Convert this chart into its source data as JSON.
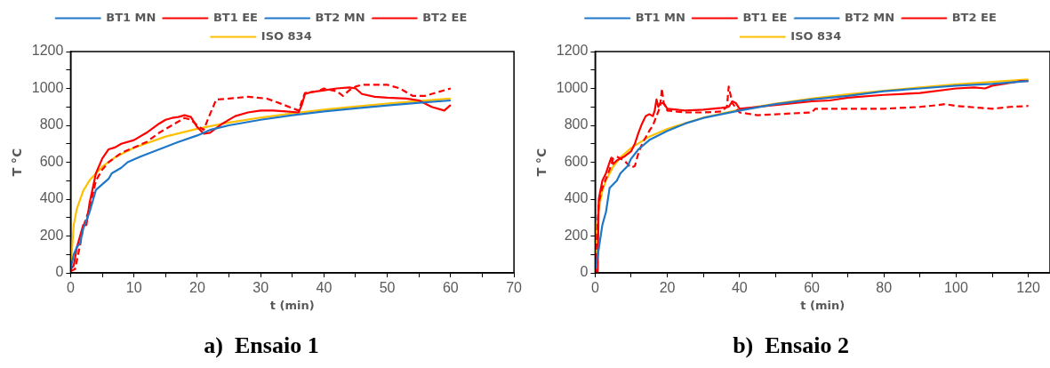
{
  "chart_data": [
    {
      "type": "line",
      "title": "a)  Ensaio 1",
      "xlabel": "t (min)",
      "ylabel": "T °C",
      "xlim": [
        0,
        70
      ],
      "ylim": [
        0,
        1200
      ],
      "xticks": [
        0,
        {
          "value": 5,
          "label": null
        },
        10,
        {
          "value": 15,
          "label": null
        },
        20,
        {
          "value": 25,
          "label": null
        },
        30,
        {
          "value": 35,
          "label": null
        },
        40,
        {
          "value": 45,
          "label": null
        },
        50,
        {
          "value": 55,
          "label": null
        },
        60,
        {
          "value": 65,
          "label": null
        },
        70
      ],
      "yticks": [
        0,
        {
          "value": 100,
          "label": null
        },
        200,
        {
          "value": 300,
          "label": null
        },
        400,
        {
          "value": 500,
          "label": null
        },
        600,
        {
          "value": 700,
          "label": null
        },
        800,
        {
          "value": 900,
          "label": null
        },
        1000,
        {
          "value": 1100,
          "label": null
        },
        1200
      ],
      "grid": false,
      "legend": "top",
      "marker": "none",
      "series": [
        {
          "name": "BT1 MN",
          "color": "#1f77c8",
          "line_style": "solid",
          "x": [
            0,
            0.5,
            1,
            1.5,
            2,
            3,
            4,
            5,
            6,
            6.5,
            8,
            9,
            11,
            14,
            17,
            20,
            22,
            25,
            30,
            35,
            40,
            45,
            50,
            55,
            60
          ],
          "values": [
            20,
            100,
            140,
            160,
            240,
            330,
            450,
            480,
            510,
            540,
            570,
            600,
            630,
            670,
            710,
            745,
            775,
            800,
            830,
            855,
            875,
            892,
            908,
            922,
            935
          ]
        },
        {
          "name": "BT1 EE",
          "color": "#ff0000",
          "line_style": "solid",
          "x": [
            0,
            0.5,
            1,
            1.5,
            2,
            2.5,
            3,
            4,
            5,
            6,
            7,
            8,
            10,
            12,
            14,
            15,
            16,
            17,
            18,
            19,
            20,
            21,
            22,
            24,
            26,
            28,
            30,
            32,
            34,
            36,
            36.5,
            37,
            38,
            40,
            42,
            44,
            45,
            46,
            48,
            50,
            53,
            55,
            57,
            59,
            60
          ],
          "values": [
            20,
            40,
            140,
            200,
            260,
            260,
            380,
            540,
            620,
            670,
            680,
            700,
            720,
            760,
            810,
            830,
            840,
            845,
            855,
            845,
            790,
            755,
            760,
            810,
            850,
            870,
            880,
            880,
            875,
            870,
            910,
            970,
            980,
            990,
            1000,
            1005,
            1000,
            970,
            955,
            950,
            945,
            935,
            900,
            880,
            910
          ]
        },
        {
          "name": "BT2 MN",
          "color": "#1f77c8",
          "line_style": "dashed"
        },
        {
          "name": "BT2 EE",
          "color": "#ff0000",
          "line_style": "dashed",
          "x": [
            0,
            0.7,
            1.5,
            2,
            3,
            4,
            5,
            6,
            8,
            10,
            12,
            14,
            16,
            18,
            19,
            20,
            21,
            22,
            23,
            25,
            28,
            31,
            33,
            36,
            36.5,
            37,
            39,
            40,
            42,
            43,
            44,
            45,
            46,
            48,
            50,
            52,
            54,
            56,
            58,
            60
          ],
          "values": [
            10,
            20,
            150,
            250,
            350,
            500,
            560,
            600,
            650,
            680,
            710,
            760,
            800,
            840,
            830,
            800,
            775,
            860,
            940,
            945,
            955,
            945,
            920,
            880,
            930,
            975,
            985,
            1000,
            985,
            960,
            990,
            1010,
            1020,
            1020,
            1020,
            1000,
            960,
            960,
            980,
            1000
          ]
        },
        {
          "name": "ISO 834",
          "color": "#ffc000",
          "line_style": "solid",
          "x": [
            0,
            0.5,
            1,
            2,
            3,
            5,
            7,
            10,
            15,
            20,
            25,
            30,
            35,
            40,
            45,
            50,
            55,
            60
          ],
          "values": [
            20,
            261,
            349,
            445,
            502,
            576,
            626,
            678,
            739,
            781,
            815,
            842,
            865,
            885,
            902,
            918,
            932,
            945
          ]
        }
      ]
    },
    {
      "type": "line",
      "title": "b)  Ensaio 2",
      "xlabel": "t (min)",
      "ylabel": "T °C",
      "xlim": [
        0,
        126
      ],
      "ylim": [
        0,
        1200
      ],
      "xticks": [
        0,
        {
          "value": 10,
          "label": null
        },
        20,
        {
          "value": 30,
          "label": null
        },
        40,
        {
          "value": 50,
          "label": null
        },
        60,
        {
          "value": 70,
          "label": null
        },
        80,
        {
          "value": 90,
          "label": null
        },
        100,
        {
          "value": 110,
          "label": null
        },
        120
      ],
      "yticks": [
        0,
        {
          "value": 100,
          "label": null
        },
        200,
        {
          "value": 300,
          "label": null
        },
        400,
        {
          "value": 500,
          "label": null
        },
        600,
        {
          "value": 700,
          "label": null
        },
        800,
        {
          "value": 900,
          "label": null
        },
        1000,
        {
          "value": 1100,
          "label": null
        },
        1200
      ],
      "grid": false,
      "legend": "top",
      "marker": "none",
      "series": [
        {
          "name": "BT1 MN",
          "color": "#1f77c8",
          "line_style": "solid",
          "x": [
            0,
            1,
            2,
            3,
            4,
            6,
            7,
            9,
            10,
            12,
            15,
            20,
            25,
            30,
            40,
            50,
            60,
            70,
            80,
            90,
            100,
            110,
            120
          ],
          "values": [
            20,
            130,
            260,
            330,
            460,
            500,
            540,
            580,
            620,
            670,
            720,
            770,
            810,
            840,
            880,
            915,
            940,
            960,
            985,
            1000,
            1015,
            1025,
            1040
          ]
        },
        {
          "name": "BT1 EE",
          "color": "#ff0000",
          "line_style": "solid",
          "x": [
            0,
            0.7,
            1,
            2,
            3,
            4,
            4.5,
            5,
            6,
            8,
            10,
            11,
            12,
            13,
            14,
            15,
            16,
            16.5,
            17,
            17.5,
            18,
            19,
            20,
            25,
            30,
            35,
            37,
            38,
            39,
            40,
            45,
            50,
            60,
            65,
            70,
            80,
            90,
            100,
            105,
            108,
            110,
            115,
            118,
            120
          ],
          "values": [
            20,
            0,
            400,
            500,
            540,
            600,
            625,
            590,
            610,
            630,
            660,
            700,
            760,
            810,
            850,
            860,
            850,
            880,
            940,
            900,
            920,
            920,
            890,
            880,
            885,
            895,
            900,
            930,
            920,
            890,
            900,
            910,
            930,
            935,
            950,
            965,
            975,
            1000,
            1005,
            1000,
            1015,
            1030,
            1040,
            1040
          ]
        },
        {
          "name": "BT2 MN",
          "color": "#1f77c8",
          "line_style": "dashed"
        },
        {
          "name": "BT2 EE",
          "color": "#ff0000",
          "line_style": "dashed",
          "x": [
            0,
            1,
            2,
            4,
            5,
            6,
            8,
            9,
            10,
            11,
            12,
            13,
            15,
            16,
            17,
            18,
            18.5,
            19,
            20,
            25,
            30,
            35,
            36.5,
            37,
            38,
            40,
            45,
            50,
            55,
            60,
            61,
            70,
            80,
            90,
            95,
            97,
            100,
            110,
            115,
            120
          ],
          "values": [
            20,
            380,
            460,
            560,
            620,
            630,
            610,
            590,
            570,
            580,
            650,
            700,
            770,
            800,
            850,
            900,
            1000,
            920,
            880,
            870,
            870,
            875,
            900,
            1010,
            920,
            870,
            855,
            860,
            865,
            870,
            890,
            890,
            890,
            900,
            910,
            915,
            905,
            890,
            900,
            905
          ]
        },
        {
          "name": "ISO 834",
          "color": "#ffc000",
          "line_style": "solid",
          "x": [
            0,
            0.5,
            1,
            2,
            3,
            5,
            7,
            10,
            15,
            20,
            30,
            40,
            50,
            60,
            70,
            80,
            90,
            100,
            110,
            120
          ],
          "values": [
            20,
            261,
            349,
            445,
            502,
            576,
            626,
            678,
            739,
            781,
            842,
            885,
            918,
            945,
            968,
            988,
            1006,
            1022,
            1036,
            1049
          ]
        }
      ]
    }
  ]
}
